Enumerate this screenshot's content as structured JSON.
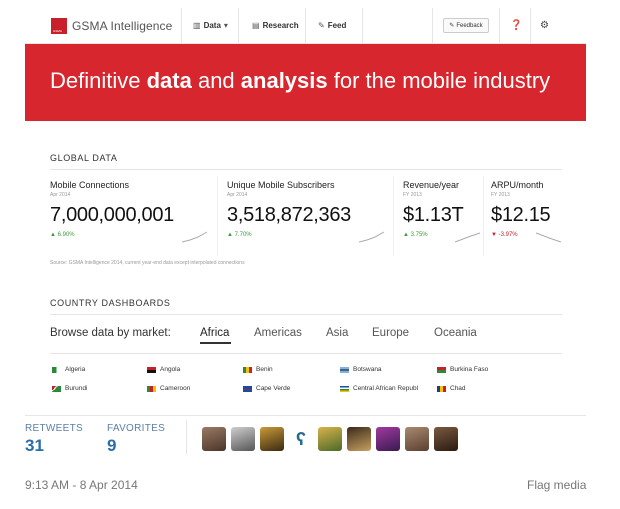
{
  "site": {
    "logo_text": "GSMA Intelligence",
    "logo_mark_text": "GSMA",
    "nav": [
      {
        "label": "Data",
        "icon": "bar-chart-icon",
        "glyph": "▥",
        "has_caret": true
      },
      {
        "label": "Research",
        "icon": "document-icon",
        "glyph": "▤"
      },
      {
        "label": "Feed",
        "icon": "rss-icon",
        "glyph": "✎"
      }
    ],
    "caret": "▾",
    "feedback_label": "Feedback",
    "feedback_glyph": "✎",
    "help_glyph": "❓",
    "settings_glyph": "⚙",
    "hero": {
      "text_plain_1": "Definitive ",
      "text_bold_1": "data",
      "text_plain_2": " and ",
      "text_bold_2": "analysis",
      "text_plain_3": " for the mobile industry",
      "background": "#d7262d"
    },
    "global_data": {
      "title": "GLOBAL DATA",
      "metrics": [
        {
          "label": "Mobile Connections",
          "date": "Apr 2014",
          "value": "7,000,000,001",
          "change": "▲ 6.90%",
          "direction": "up"
        },
        {
          "label": "Unique Mobile Subscribers",
          "date": "Apr 2014",
          "value": "3,518,872,363",
          "change": "▲ 7.70%",
          "direction": "up"
        },
        {
          "label": "Revenue/year",
          "date": "FY 2013",
          "value": "$1.13T",
          "change": "▲ 3.75%",
          "direction": "up"
        },
        {
          "label": "ARPU/month",
          "date": "FY 2013",
          "value": "$12.15",
          "change": "▼ -3.97%",
          "direction": "down"
        }
      ],
      "source": "Source: GSMA Intelligence 2014, current year-end data except interpolated connections"
    },
    "country_dashboards": {
      "title": "COUNTRY DASHBOARDS",
      "browse_label": "Browse data by market:",
      "tabs": [
        "Africa",
        "Americas",
        "Asia",
        "Europe",
        "Oceania"
      ],
      "active_tab": "Africa",
      "countries": [
        "Algeria",
        "Angola",
        "Benin",
        "Botswana",
        "Burkina Faso",
        "Burundi",
        "Cameroon",
        "Cape Verde",
        "Central African Republ",
        "Chad"
      ]
    }
  },
  "tweet": {
    "retweets_label": "RETWEETS",
    "retweets_count": "31",
    "favorites_label": "FAVORITES",
    "favorites_count": "9",
    "timestamp": "9:13 AM - 8 Apr 2014",
    "flag_media_label": "Flag media",
    "accent_color": "#2a6da9"
  }
}
